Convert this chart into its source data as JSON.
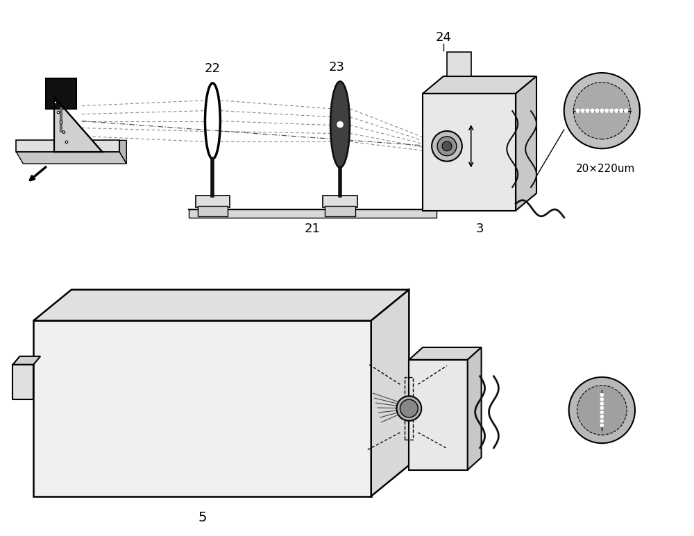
{
  "bg_color": "#ffffff",
  "line_color": "#000000",
  "gray_color": "#888888",
  "light_gray": "#cccccc",
  "dark_gray": "#555555",
  "green_line": "#00aa00",
  "red_line": "#cc0000",
  "label_22": "22",
  "label_23": "23",
  "label_24": "24",
  "label_21": "21",
  "label_3": "3",
  "label_5": "5",
  "label_dim": "20×220um"
}
